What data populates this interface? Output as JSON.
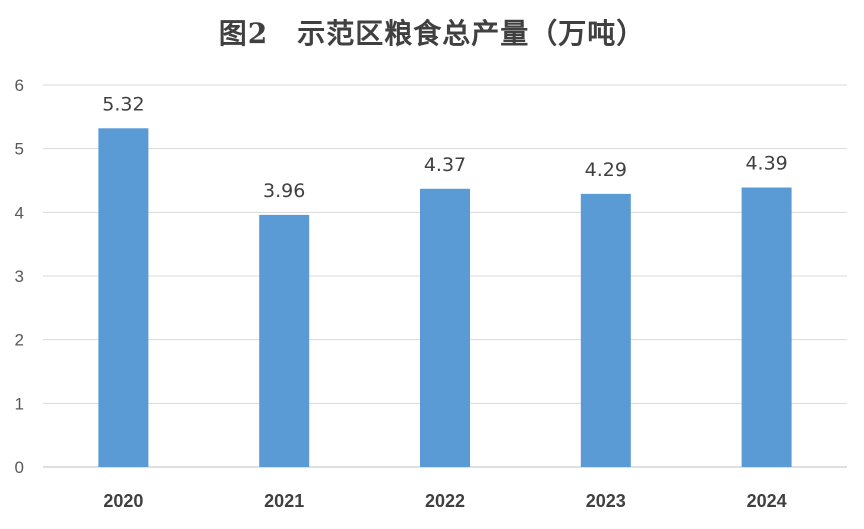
{
  "chart_data": {
    "type": "bar",
    "title": "图2　示范区粮食总产量（万吨）",
    "categories": [
      "2020",
      "2021",
      "2022",
      "2023",
      "2024"
    ],
    "values": [
      5.32,
      3.96,
      4.37,
      4.29,
      4.39
    ],
    "data_labels": [
      "5.32",
      "3.96",
      "4.37",
      "4.29",
      "4.39"
    ],
    "yticks": [
      "0",
      "1",
      "2",
      "3",
      "4",
      "5",
      "6"
    ],
    "ylim": [
      0,
      6
    ],
    "grid": true,
    "legend": "none",
    "colors": {
      "bar": "#5b9bd5",
      "grid": "#d9d9d9",
      "axis": "#bfbfbf"
    }
  }
}
